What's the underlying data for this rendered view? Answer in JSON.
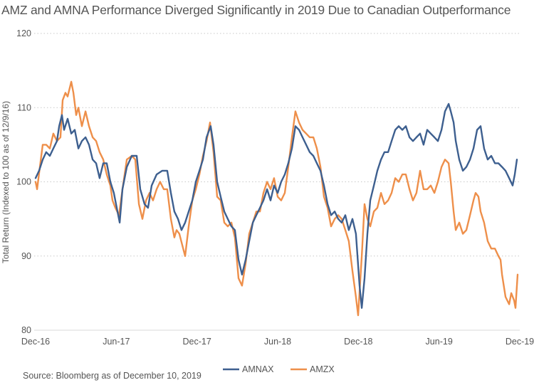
{
  "chart_data": {
    "type": "line",
    "title": "AMZ and AMNA Performance Diverged Significantly in 2019 Due to Canadian Outperformance",
    "xlabel": "",
    "ylabel": "Total Return (Indexed to 100 as of 12/9/16)",
    "source": "Source: Bloomberg as of December 10, 2019",
    "x_unit": "months since Dec-16",
    "xlim": [
      0,
      36
    ],
    "ylim": [
      80,
      120
    ],
    "grid": true,
    "legend_position": "bottom-center",
    "x_ticks": [
      {
        "label": "Dec-16",
        "value": 0
      },
      {
        "label": "Jun-17",
        "value": 6
      },
      {
        "label": "Dec-17",
        "value": 12
      },
      {
        "label": "Jun-18",
        "value": 18
      },
      {
        "label": "Dec-18",
        "value": 24
      },
      {
        "label": "Jun-19",
        "value": 30
      },
      {
        "label": "Dec-19",
        "value": 36
      }
    ],
    "y_ticks": [
      {
        "label": "80",
        "value": 80
      },
      {
        "label": "90",
        "value": 90
      },
      {
        "label": "100",
        "value": 100
      },
      {
        "label": "110",
        "value": 110
      },
      {
        "label": "120",
        "value": 120
      }
    ],
    "series": [
      {
        "name": "AMNAX",
        "color": "#3d5f8f",
        "points": [
          [
            0.0,
            100.5
          ],
          [
            0.26,
            101.5
          ],
          [
            0.53,
            103
          ],
          [
            0.79,
            104
          ],
          [
            1.06,
            103.5
          ],
          [
            1.32,
            104.5
          ],
          [
            1.59,
            105.5
          ],
          [
            1.75,
            107.5
          ],
          [
            1.96,
            109
          ],
          [
            2.12,
            107
          ],
          [
            2.38,
            108.5
          ],
          [
            2.65,
            106.5
          ],
          [
            2.91,
            107
          ],
          [
            3.18,
            104.5
          ],
          [
            3.44,
            105.5
          ],
          [
            3.71,
            106
          ],
          [
            3.97,
            105
          ],
          [
            4.24,
            103
          ],
          [
            4.5,
            102.5
          ],
          [
            4.76,
            100.5
          ],
          [
            5.03,
            102.5
          ],
          [
            5.29,
            102.5
          ],
          [
            5.56,
            100
          ],
          [
            5.82,
            98.5
          ],
          [
            6.09,
            96
          ],
          [
            6.25,
            94.5
          ],
          [
            6.46,
            99
          ],
          [
            6.78,
            102
          ],
          [
            7.15,
            103.5
          ],
          [
            7.52,
            103.5
          ],
          [
            7.78,
            99
          ],
          [
            8.1,
            97
          ],
          [
            8.36,
            96.5
          ],
          [
            8.63,
            99.5
          ],
          [
            9.0,
            101
          ],
          [
            9.42,
            101.5
          ],
          [
            9.79,
            101.5
          ],
          [
            10.06,
            98.5
          ],
          [
            10.32,
            96
          ],
          [
            10.59,
            95
          ],
          [
            10.85,
            93.5
          ],
          [
            11.12,
            94.5
          ],
          [
            11.38,
            96
          ],
          [
            11.65,
            97.5
          ],
          [
            11.91,
            100
          ],
          [
            12.18,
            101.5
          ],
          [
            12.44,
            103
          ],
          [
            12.71,
            106
          ],
          [
            13.02,
            107.5
          ],
          [
            13.23,
            105
          ],
          [
            13.5,
            100
          ],
          [
            13.76,
            98
          ],
          [
            14.03,
            96
          ],
          [
            14.29,
            95
          ],
          [
            14.56,
            94
          ],
          [
            14.82,
            93.5
          ],
          [
            15.09,
            89.5
          ],
          [
            15.35,
            87.5
          ],
          [
            15.62,
            89.5
          ],
          [
            15.88,
            92
          ],
          [
            16.15,
            94.5
          ],
          [
            16.41,
            95.5
          ],
          [
            16.68,
            96.5
          ],
          [
            16.94,
            97.5
          ],
          [
            17.21,
            99
          ],
          [
            17.47,
            97.5
          ],
          [
            17.73,
            99.5
          ],
          [
            18.0,
            98.5
          ],
          [
            18.26,
            100
          ],
          [
            18.53,
            101
          ],
          [
            18.79,
            102.5
          ],
          [
            19.06,
            104.5
          ],
          [
            19.32,
            107.5
          ],
          [
            19.59,
            107
          ],
          [
            19.85,
            106
          ],
          [
            20.12,
            105
          ],
          [
            20.38,
            104
          ],
          [
            20.65,
            103.5
          ],
          [
            20.91,
            102.5
          ],
          [
            21.18,
            101.5
          ],
          [
            21.44,
            99.5
          ],
          [
            21.71,
            97
          ],
          [
            21.97,
            95.5
          ],
          [
            22.24,
            96
          ],
          [
            22.5,
            95
          ],
          [
            22.76,
            94.5
          ],
          [
            23.03,
            95.5
          ],
          [
            23.29,
            93.5
          ],
          [
            23.56,
            95
          ],
          [
            23.82,
            93
          ],
          [
            24.09,
            86
          ],
          [
            24.25,
            83
          ],
          [
            24.46,
            87
          ],
          [
            24.67,
            93
          ],
          [
            24.88,
            97.5
          ],
          [
            25.15,
            99.5
          ],
          [
            25.41,
            101.5
          ],
          [
            25.68,
            103
          ],
          [
            25.94,
            104
          ],
          [
            26.21,
            104
          ],
          [
            26.47,
            105.5
          ],
          [
            26.74,
            107
          ],
          [
            27.0,
            107.5
          ],
          [
            27.27,
            107
          ],
          [
            27.53,
            107.5
          ],
          [
            27.8,
            106
          ],
          [
            28.06,
            105.5
          ],
          [
            28.32,
            106
          ],
          [
            28.59,
            106.5
          ],
          [
            28.85,
            105
          ],
          [
            29.12,
            107
          ],
          [
            29.38,
            106.5
          ],
          [
            29.65,
            106
          ],
          [
            29.91,
            105.5
          ],
          [
            30.18,
            107
          ],
          [
            30.44,
            109.5
          ],
          [
            30.71,
            110.5
          ],
          [
            30.87,
            109.5
          ],
          [
            31.08,
            108
          ],
          [
            31.24,
            105.5
          ],
          [
            31.5,
            103
          ],
          [
            31.77,
            101.5
          ],
          [
            32.03,
            102
          ],
          [
            32.3,
            103
          ],
          [
            32.56,
            104.5
          ],
          [
            32.83,
            107
          ],
          [
            33.09,
            107.5
          ],
          [
            33.35,
            104.5
          ],
          [
            33.62,
            103
          ],
          [
            33.88,
            103.5
          ],
          [
            34.15,
            102.5
          ],
          [
            34.41,
            102.5
          ],
          [
            34.68,
            102
          ],
          [
            34.94,
            101.5
          ],
          [
            35.21,
            100.5
          ],
          [
            35.47,
            99.5
          ],
          [
            35.63,
            101
          ],
          [
            35.79,
            103
          ]
        ]
      },
      {
        "name": "AMZX",
        "color": "#ee8f4a",
        "points": [
          [
            0.0,
            100
          ],
          [
            0.11,
            99
          ],
          [
            0.32,
            102
          ],
          [
            0.53,
            105
          ],
          [
            0.79,
            105
          ],
          [
            1.06,
            104.5
          ],
          [
            1.32,
            106.5
          ],
          [
            1.59,
            105.5
          ],
          [
            1.85,
            106
          ],
          [
            2.01,
            111
          ],
          [
            2.22,
            112
          ],
          [
            2.38,
            111.5
          ],
          [
            2.65,
            113.5
          ],
          [
            2.81,
            112
          ],
          [
            3.02,
            109
          ],
          [
            3.18,
            110
          ],
          [
            3.44,
            107.5
          ],
          [
            3.71,
            109.5
          ],
          [
            3.97,
            107.5
          ],
          [
            4.24,
            106
          ],
          [
            4.5,
            105.5
          ],
          [
            4.76,
            104
          ],
          [
            5.03,
            103
          ],
          [
            5.29,
            101
          ],
          [
            5.56,
            99.5
          ],
          [
            5.72,
            97.5
          ],
          [
            5.93,
            96.5
          ],
          [
            6.2,
            95.5
          ],
          [
            6.46,
            99
          ],
          [
            6.78,
            103
          ],
          [
            7.15,
            103.5
          ],
          [
            7.41,
            103
          ],
          [
            7.68,
            97
          ],
          [
            7.94,
            95
          ],
          [
            8.21,
            97.5
          ],
          [
            8.47,
            98.5
          ],
          [
            8.73,
            97.5
          ],
          [
            9.0,
            99
          ],
          [
            9.26,
            100
          ],
          [
            9.53,
            99
          ],
          [
            9.79,
            99
          ],
          [
            10.06,
            95
          ],
          [
            10.32,
            92.5
          ],
          [
            10.48,
            93.5
          ],
          [
            10.69,
            93
          ],
          [
            10.9,
            91.5
          ],
          [
            11.12,
            90
          ],
          [
            11.38,
            94
          ],
          [
            11.65,
            97.5
          ],
          [
            11.91,
            99
          ],
          [
            12.18,
            101
          ],
          [
            12.44,
            103.5
          ],
          [
            12.71,
            105.5
          ],
          [
            12.97,
            108
          ],
          [
            13.23,
            104
          ],
          [
            13.5,
            98
          ],
          [
            13.76,
            97.5
          ],
          [
            14.03,
            94.5
          ],
          [
            14.29,
            94
          ],
          [
            14.56,
            94.5
          ],
          [
            14.82,
            92.5
          ],
          [
            15.09,
            87
          ],
          [
            15.35,
            86
          ],
          [
            15.62,
            89
          ],
          [
            15.88,
            93
          ],
          [
            16.15,
            94.5
          ],
          [
            16.41,
            96
          ],
          [
            16.68,
            96
          ],
          [
            16.94,
            98.5
          ],
          [
            17.21,
            100
          ],
          [
            17.47,
            99
          ],
          [
            17.73,
            100.5
          ],
          [
            18.0,
            98
          ],
          [
            18.26,
            97.5
          ],
          [
            18.53,
            98.5
          ],
          [
            18.79,
            102
          ],
          [
            19.06,
            106
          ],
          [
            19.32,
            109.5
          ],
          [
            19.59,
            108
          ],
          [
            19.85,
            107
          ],
          [
            20.12,
            106.5
          ],
          [
            20.38,
            106
          ],
          [
            20.65,
            106
          ],
          [
            20.91,
            104.5
          ],
          [
            21.18,
            102
          ],
          [
            21.44,
            98
          ],
          [
            21.71,
            96.5
          ],
          [
            21.97,
            94
          ],
          [
            22.24,
            95
          ],
          [
            22.5,
            95.5
          ],
          [
            22.76,
            95
          ],
          [
            23.03,
            93.5
          ],
          [
            23.29,
            92
          ],
          [
            23.56,
            88
          ],
          [
            23.82,
            84.5
          ],
          [
            23.98,
            82
          ],
          [
            24.25,
            90
          ],
          [
            24.46,
            97
          ],
          [
            24.67,
            95
          ],
          [
            24.88,
            94
          ],
          [
            25.15,
            96
          ],
          [
            25.41,
            96.5
          ],
          [
            25.68,
            98.5
          ],
          [
            25.94,
            97
          ],
          [
            26.21,
            97.5
          ],
          [
            26.47,
            98.5
          ],
          [
            26.74,
            100.5
          ],
          [
            27.0,
            100
          ],
          [
            27.27,
            101
          ],
          [
            27.53,
            101
          ],
          [
            27.8,
            99
          ],
          [
            28.06,
            97.5
          ],
          [
            28.32,
            98.5
          ],
          [
            28.59,
            101.5
          ],
          [
            28.85,
            99
          ],
          [
            29.12,
            99
          ],
          [
            29.38,
            99.5
          ],
          [
            29.65,
            98.5
          ],
          [
            29.91,
            100
          ],
          [
            30.18,
            102
          ],
          [
            30.44,
            103
          ],
          [
            30.71,
            102.5
          ],
          [
            30.87,
            100
          ],
          [
            31.08,
            96
          ],
          [
            31.24,
            93.5
          ],
          [
            31.5,
            94.5
          ],
          [
            31.77,
            93
          ],
          [
            32.03,
            93.5
          ],
          [
            32.3,
            95.5
          ],
          [
            32.56,
            97.5
          ],
          [
            32.72,
            98.5
          ],
          [
            32.93,
            98
          ],
          [
            33.09,
            96
          ],
          [
            33.35,
            94.5
          ],
          [
            33.62,
            92
          ],
          [
            33.88,
            91
          ],
          [
            34.15,
            91
          ],
          [
            34.41,
            90
          ],
          [
            34.57,
            89.5
          ],
          [
            34.68,
            87.5
          ],
          [
            34.94,
            84.5
          ],
          [
            35.21,
            83.5
          ],
          [
            35.37,
            85
          ],
          [
            35.58,
            84
          ],
          [
            35.68,
            83
          ],
          [
            35.84,
            87.5
          ]
        ]
      }
    ]
  }
}
